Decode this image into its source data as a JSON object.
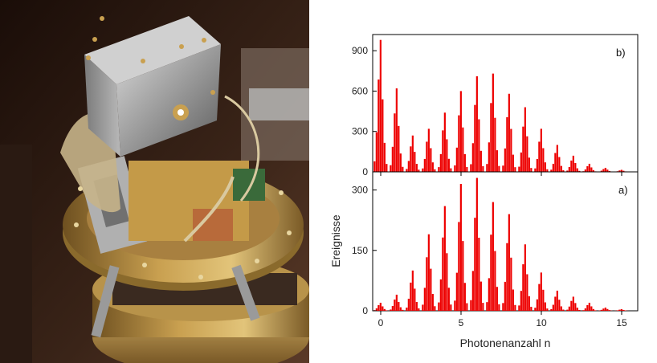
{
  "photo": {
    "subject": "cryogenic experimental apparatus with gold-plated stages and metal box"
  },
  "colors": {
    "bars": "#ee0000",
    "axis": "#000000"
  },
  "chart_data": {
    "type": "bar",
    "xlabel": "Photonenanzahl n",
    "ylabel": "Ereignisse",
    "xlim": [
      -0.5,
      16
    ],
    "x_ticks": [
      0,
      5,
      10,
      15
    ],
    "bin_width": 0.125,
    "panels": [
      {
        "label": "b)",
        "ylim": [
          0,
          1020
        ],
        "y_ticks": [
          0,
          300,
          600,
          900
        ],
        "peaks": [
          {
            "n": 0,
            "height": 980
          },
          {
            "n": 1,
            "height": 620
          },
          {
            "n": 2,
            "height": 270
          },
          {
            "n": 3,
            "height": 320
          },
          {
            "n": 4,
            "height": 440
          },
          {
            "n": 5,
            "height": 600
          },
          {
            "n": 6,
            "height": 710
          },
          {
            "n": 7,
            "height": 730
          },
          {
            "n": 8,
            "height": 580
          },
          {
            "n": 9,
            "height": 480
          },
          {
            "n": 10,
            "height": 320
          },
          {
            "n": 11,
            "height": 200
          },
          {
            "n": 12,
            "height": 120
          },
          {
            "n": 13,
            "height": 60
          },
          {
            "n": 14,
            "height": 30
          },
          {
            "n": 15,
            "height": 15
          }
        ]
      },
      {
        "label": "a)",
        "ylim": [
          0,
          345
        ],
        "y_ticks": [
          0,
          150,
          300
        ],
        "peaks": [
          {
            "n": 0,
            "height": 20
          },
          {
            "n": 1,
            "height": 40
          },
          {
            "n": 2,
            "height": 100
          },
          {
            "n": 3,
            "height": 190
          },
          {
            "n": 4,
            "height": 260
          },
          {
            "n": 5,
            "height": 315
          },
          {
            "n": 6,
            "height": 330
          },
          {
            "n": 7,
            "height": 270
          },
          {
            "n": 8,
            "height": 240
          },
          {
            "n": 9,
            "height": 165
          },
          {
            "n": 10,
            "height": 95
          },
          {
            "n": 11,
            "height": 50
          },
          {
            "n": 12,
            "height": 35
          },
          {
            "n": 13,
            "height": 20
          },
          {
            "n": 14,
            "height": 8
          },
          {
            "n": 15,
            "height": 4
          }
        ]
      }
    ]
  }
}
